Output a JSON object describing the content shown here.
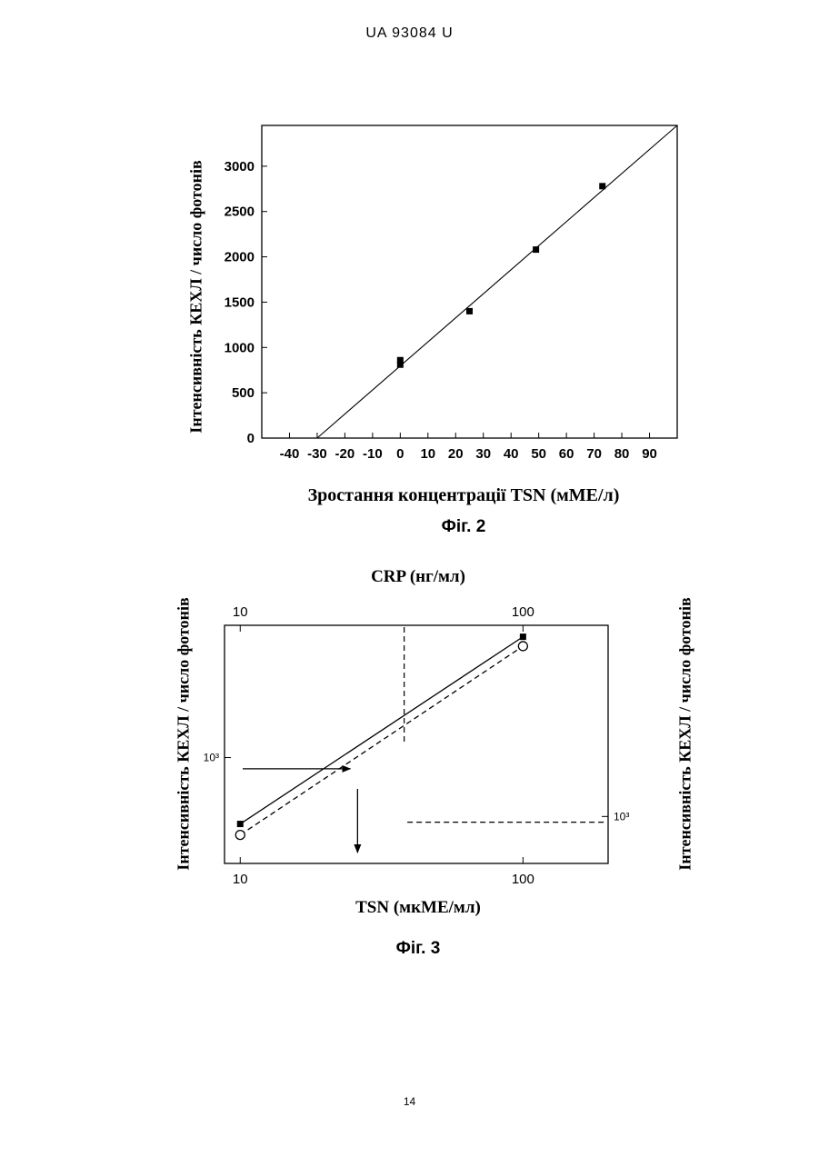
{
  "header": {
    "doc_number": "UA   93084   U"
  },
  "page_number": "14",
  "chart_data": [
    {
      "type": "scatter",
      "caption": "Фіг. 2",
      "xlabel": "Зростання  концентрації  TSN (мМЕ/л)",
      "ylabel": "Інтенсивність КЕХЛ / число фотонів",
      "xlim": [
        -50,
        100
      ],
      "ylim": [
        0,
        3450
      ],
      "xticks": [
        -40,
        -30,
        -20,
        -10,
        0,
        10,
        20,
        30,
        40,
        50,
        60,
        70,
        80,
        90
      ],
      "xtick_labels": [
        "-40",
        "-30",
        "-20",
        "-10",
        "0",
        "10",
        "20",
        "30",
        "40",
        "50",
        "60",
        "70",
        "80",
        "90"
      ],
      "yticks": [
        0,
        500,
        1000,
        1500,
        2000,
        2500,
        3000
      ],
      "ytick_labels": [
        "0",
        "500",
        "1000",
        "1500",
        "2000",
        "2500",
        "3000"
      ],
      "grid": false,
      "series": [
        {
          "marker": "filled-square",
          "x": [
            0,
            0,
            25,
            49,
            73
          ],
          "y": [
            810,
            860,
            1400,
            2080,
            2780
          ]
        }
      ],
      "fit_line": {
        "x": [
          -30,
          100
        ],
        "y": [
          0,
          3450
        ]
      }
    },
    {
      "type": "line",
      "caption": "Фіг. 3",
      "xlabel": "TSN (мкМЕ/мл)",
      "x2label": "CRP (нг/мл)",
      "ylabel_left": "Інтенсивність КЕХЛ / число фотонів",
      "ylabel_right": "Інтенсивність КЕХЛ / число фотонів",
      "xscale": "log",
      "xlim": [
        8.8,
        200
      ],
      "xticks": [
        10,
        100
      ],
      "xtick_labels": [
        "10",
        "100"
      ],
      "x2ticks": [
        10,
        100
      ],
      "x2tick_labels": [
        "10",
        "100"
      ],
      "yscale_left": "log",
      "ylim_left": [
        300,
        4500
      ],
      "yticks_left": [
        1000
      ],
      "ytick_labels_left": [
        "10³"
      ],
      "yscale_right": "log",
      "ylim_right": [
        600,
        8000
      ],
      "yticks_right": [
        1000
      ],
      "ytick_labels_right": [
        "10³"
      ],
      "grid": false,
      "series": [
        {
          "line": "solid",
          "marker": "filled-square",
          "x": [
            10,
            100
          ],
          "y": [
            470,
            3950
          ]
        },
        {
          "line": "dashed",
          "marker": "open-circle",
          "x": [
            10,
            100
          ],
          "y": [
            415,
            3550
          ]
        }
      ],
      "guides": [
        {
          "style": "solid-arrow",
          "path": "left-axis at y=880 → solid line",
          "y": 880
        },
        {
          "style": "solid-arrow",
          "path": "down from line at x=26",
          "x": 26
        },
        {
          "style": "dashed",
          "path": "top-axis at x=38 → down to dashed line",
          "x": 38
        },
        {
          "style": "dashed",
          "path": "dashed line → right-axis at y=940",
          "y": 940
        }
      ]
    }
  ]
}
